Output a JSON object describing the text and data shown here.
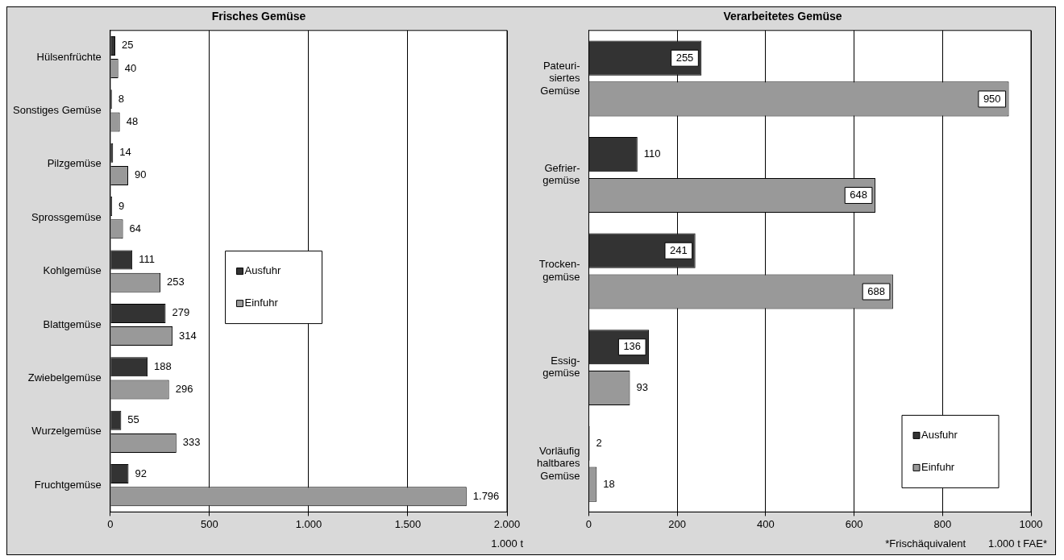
{
  "chart_data": [
    {
      "type": "bar",
      "orientation": "horizontal",
      "title": "Frisches Gemüse",
      "xlabel": "1.000 t",
      "categories": [
        "Hülsenfrüchte",
        "Sonstiges Gemüse",
        "Pilzgemüse",
        "Sprossgemüse",
        "Kohlgemüse",
        "Blattgemüse",
        "Zwiebelgemüse",
        "Wurzelgemüse",
        "Fruchtgemüse"
      ],
      "series": [
        {
          "name": "Ausfuhr",
          "color": "#333333",
          "values": [
            25,
            8,
            14,
            9,
            111,
            279,
            188,
            55,
            92
          ],
          "value_labels": [
            "25",
            "8",
            "14",
            "9",
            "111",
            "279",
            "188",
            "55",
            "92"
          ]
        },
        {
          "name": "Einfuhr",
          "color": "#999999",
          "values": [
            40,
            48,
            90,
            64,
            253,
            314,
            296,
            333,
            1796
          ],
          "value_labels": [
            "40",
            "48",
            "90",
            "64",
            "253",
            "314",
            "296",
            "333",
            "1.796"
          ]
        }
      ],
      "xlim": [
        0,
        2000
      ],
      "xticks": [
        0,
        500,
        {
          "value": 1000,
          "label": "1.000"
        },
        {
          "value": 1500,
          "label": "1.500"
        },
        {
          "value": 2000,
          "label": "2.000"
        }
      ],
      "grid": "x",
      "legend": "left"
    },
    {
      "type": "bar",
      "orientation": "horizontal",
      "title": "Verarbeitetes Gemüse",
      "xlabel": "1.000 t FAE*",
      "annotations": [
        "*Frischäquivalent"
      ],
      "categories": [
        "Pateuri-\nsiertes\nGemüse",
        "Gefrier-\ngemüse",
        "Trocken-\ngemüse",
        "Essig-\ngemüse",
        "Vorläufig\nhaltbares\nGemüse"
      ],
      "series": [
        {
          "name": "Ausfuhr",
          "color": "#333333",
          "values": [
            255,
            110,
            241,
            136,
            2
          ]
        },
        {
          "name": "Einfuhr",
          "color": "#999999",
          "values": [
            950,
            648,
            688,
            93,
            18
          ]
        }
      ],
      "xlim": [
        0,
        1000
      ],
      "xticks": [
        0,
        200,
        400,
        600,
        800,
        1000
      ],
      "grid": "x",
      "legend": "bottom right",
      "data_labels": true
    }
  ]
}
